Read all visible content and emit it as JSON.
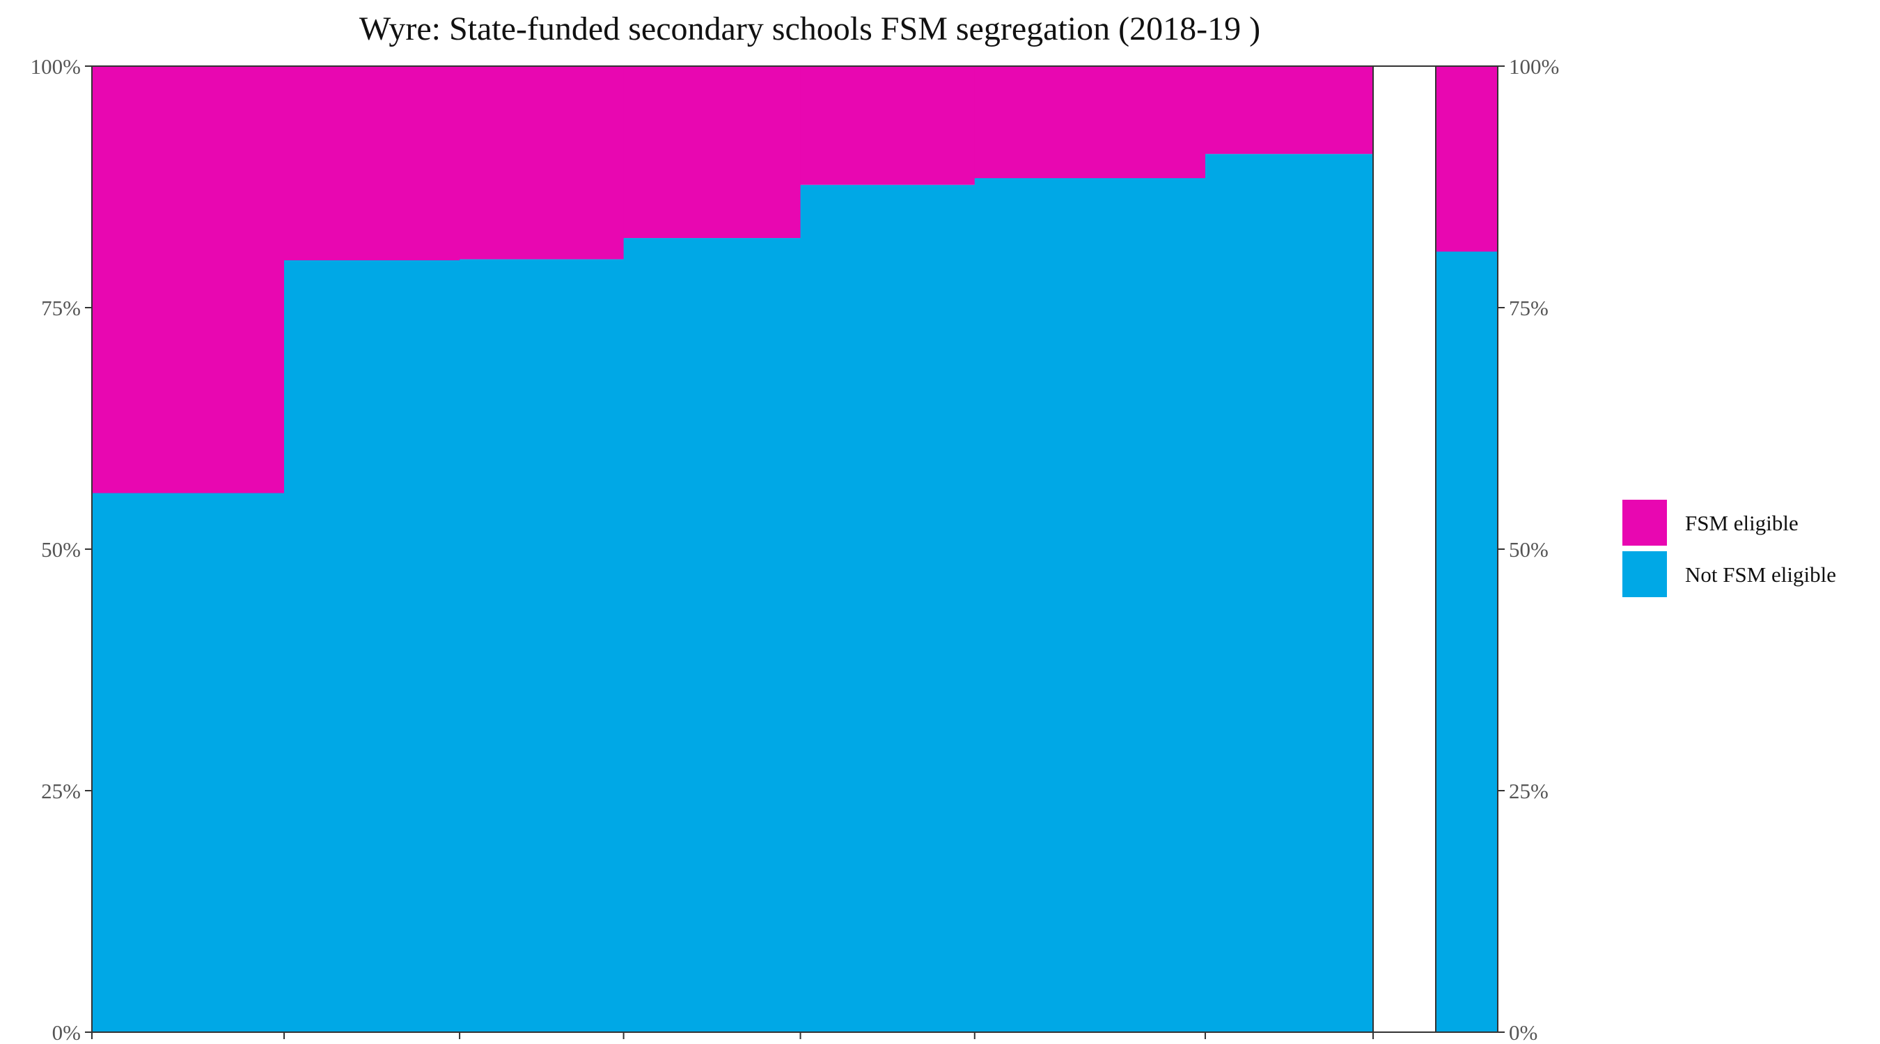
{
  "chart_data": {
    "type": "bar",
    "title": "Wyre: State-funded secondary schools FSM segregation (2018-19 )",
    "xlabel": "",
    "ylabel": "",
    "ylim": [
      0,
      100
    ],
    "y_ticks": [
      "0%",
      "25%",
      "50%",
      "75%",
      "100%"
    ],
    "legend_position": "right",
    "grid": false,
    "colors": {
      "fsm": "#E807B1",
      "not_fsm": "#00A8E6"
    },
    "series": [
      {
        "name": "FSM eligible",
        "color": "#E807B1"
      },
      {
        "name": "Not FSM eligible",
        "color": "#00A8E6"
      }
    ],
    "schools": [
      {
        "enrolment_share": 0.15,
        "not_fsm_pct": 55.8
      },
      {
        "enrolment_share": 0.137,
        "not_fsm_pct": 79.9
      },
      {
        "enrolment_share": 0.128,
        "not_fsm_pct": 80.0
      },
      {
        "enrolment_share": 0.138,
        "not_fsm_pct": 82.2
      },
      {
        "enrolment_share": 0.136,
        "not_fsm_pct": 87.7
      },
      {
        "enrolment_share": 0.18,
        "not_fsm_pct": 88.4
      },
      {
        "enrolment_share": 0.131,
        "not_fsm_pct": 90.9
      }
    ],
    "overall": {
      "not_fsm_pct": 80.8
    }
  }
}
